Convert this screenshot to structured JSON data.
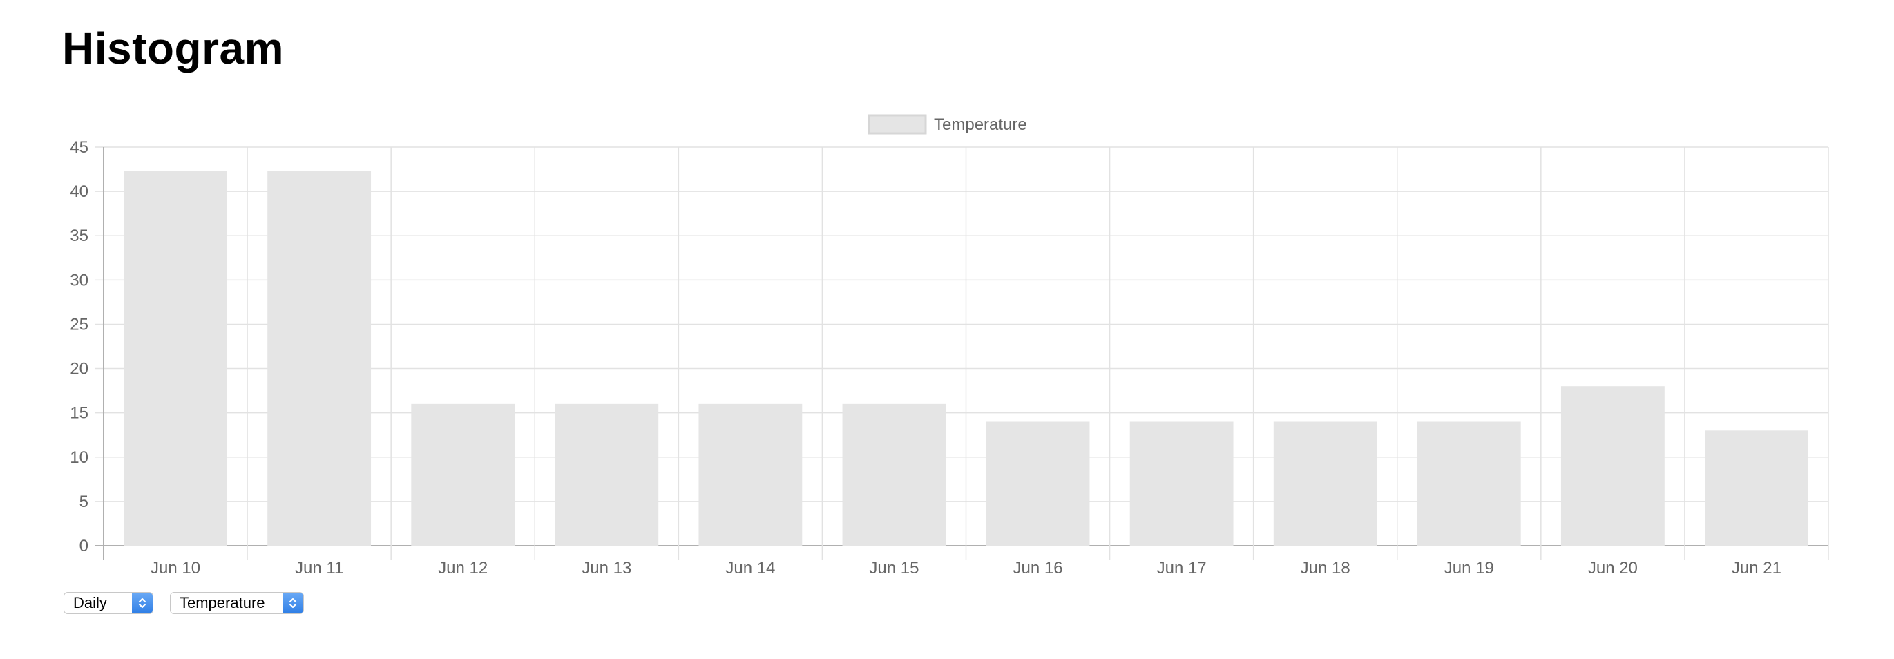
{
  "page": {
    "title": "Histogram"
  },
  "controls": {
    "period": {
      "selected": "Daily"
    },
    "metric": {
      "selected": "Temperature"
    }
  },
  "colors": {
    "bar_fill": "#e5e5e5",
    "legend_border": "#d6d6d6",
    "grid": "#e2e2e2",
    "zero_line": "#b0b0b0",
    "text": "#666666",
    "select_accent": "#3b86ec"
  },
  "chart_data": {
    "type": "bar",
    "title": "",
    "xlabel": "",
    "ylabel": "",
    "categories": [
      "Jun 10",
      "Jun 11",
      "Jun 12",
      "Jun 13",
      "Jun 14",
      "Jun 15",
      "Jun 16",
      "Jun 17",
      "Jun 18",
      "Jun 19",
      "Jun 20",
      "Jun 21"
    ],
    "series": [
      {
        "name": "Temperature",
        "values": [
          42.3,
          42.3,
          16,
          16,
          16,
          16,
          14,
          14,
          14,
          14,
          18,
          13
        ]
      }
    ],
    "ylim": [
      0,
      45
    ],
    "yticks": [
      0,
      5,
      10,
      15,
      20,
      25,
      30,
      35,
      40,
      45
    ],
    "grid": true,
    "legend_position": "top"
  }
}
